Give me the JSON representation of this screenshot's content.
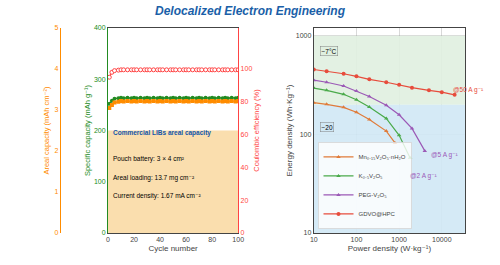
{
  "chart_data": [
    {
      "type": "line",
      "title": "Delocalized Electron Engineering",
      "x_label": "Cycle number",
      "y_label": "Specific capacity (mAh g⁻¹)",
      "y2_label": "Coulombic efficiency (%)",
      "y3_label": "Areal capacity (mAh cm⁻²)",
      "x": [
        1,
        3,
        5,
        8,
        10,
        12,
        15,
        18,
        20,
        22,
        25,
        28,
        30,
        32,
        35,
        38,
        40,
        42,
        45,
        48,
        50,
        52,
        55,
        58,
        60,
        62,
        65,
        68,
        70,
        72,
        75,
        78,
        80,
        82,
        85,
        88,
        90,
        92,
        95,
        98,
        100
      ],
      "series": [
        {
          "color": "#228B22",
          "marker": "circle",
          "line_style": "solid",
          "values": [
            252,
            258,
            262,
            263,
            264,
            263,
            264,
            263,
            264,
            263,
            264,
            263,
            264,
            263,
            264,
            263,
            264,
            263,
            264,
            263,
            264,
            263,
            264,
            263,
            264,
            263,
            264,
            263,
            264,
            263,
            264,
            263,
            264,
            263,
            264,
            263,
            264,
            263,
            264,
            263,
            264
          ]
        },
        {
          "color": "#FF8C00",
          "marker": "square",
          "line_style": "solid",
          "axis": "y3",
          "values": [
            3.05,
            3.12,
            3.18,
            3.2,
            3.22,
            3.21,
            3.22,
            3.21,
            3.22,
            3.21,
            3.22,
            3.21,
            3.22,
            3.21,
            3.22,
            3.21,
            3.22,
            3.21,
            3.22,
            3.21,
            3.22,
            3.21,
            3.22,
            3.21,
            3.22,
            3.21,
            3.22,
            3.21,
            3.22,
            3.21,
            3.22,
            3.21,
            3.22,
            3.21,
            3.22,
            3.21,
            3.22,
            3.21,
            3.22,
            3.21,
            3.22
          ]
        },
        {
          "color": "#FF4444",
          "marker": "open circle",
          "line_style": "dash",
          "axis": "y2",
          "values": [
            95,
            98,
            99,
            99.3,
            99.5,
            99.5,
            99.5,
            99.5,
            99.5,
            99.5,
            99.5,
            99.5,
            99.5,
            99.5,
            99.5,
            99.5,
            99.5,
            99.5,
            99.5,
            99.5,
            99.5,
            99.5,
            99.5,
            99.5,
            99.5,
            99.5,
            99.5,
            99.5,
            99.5,
            99.5,
            99.5,
            99.5,
            99.5,
            99.5,
            99.5,
            99.5,
            99.5,
            99.5,
            99.5,
            99.5,
            99.5
          ]
        }
      ],
      "xlim": [
        0,
        100
      ],
      "xticks": [
        0,
        20,
        40,
        60,
        80,
        100
      ],
      "ylim": [
        0,
        400
      ],
      "yticks": [
        0,
        100,
        200,
        300,
        400
      ],
      "y2lim": [
        0,
        125
      ],
      "y2ticks": [
        0,
        20,
        40,
        60,
        80,
        100
      ],
      "y3lim": [
        0,
        5
      ],
      "y3ticks": [
        0,
        1,
        2,
        3,
        4,
        5
      ],
      "grid": false,
      "bands": [
        {
          "y0": 0,
          "y1": 200,
          "label": "Commercial LIBs areal capacity",
          "color": "#f5c26b"
        }
      ],
      "annotations": [
        "Pouch battery: 3 × 4 cm²",
        "Areal loading: 13.7 mg cm⁻²",
        "Current density: 1.67 mA cm⁻²"
      ]
    },
    {
      "type": "line",
      "x_label": "Power density (W·kg⁻¹)",
      "y_label": "Energy density (Wh·Kg⁻¹)",
      "log": true,
      "xlim": [
        10,
        35000
      ],
      "xticks": [
        10,
        100,
        1000,
        10000
      ],
      "ylim": [
        10,
        1200
      ],
      "yticks": [
        10,
        100,
        1000
      ],
      "grid": true,
      "legend": "lower left",
      "series": [
        {
          "name": "Mn₀.₁₅V₂O₅·nH₂O",
          "color": "#e07b39",
          "marker": "triangle-up",
          "line_style": "solid",
          "x": [
            10,
            20,
            50,
            100,
            200,
            500,
            800
          ],
          "values": [
            210,
            202,
            188,
            168,
            142,
            108,
            82
          ]
        },
        {
          "name": "K₀.₅V₂O₅",
          "color": "#4aaa4a",
          "marker": "triangle-up",
          "line_style": "solid",
          "x": [
            10,
            20,
            50,
            100,
            200,
            500,
            1000,
            1800
          ],
          "values": [
            295,
            280,
            255,
            225,
            190,
            145,
            98,
            58
          ]
        },
        {
          "name": "PEG-V₂O₅",
          "color": "#9b59b6",
          "marker": "triangle-up",
          "line_style": "solid",
          "x": [
            10,
            20,
            50,
            100,
            200,
            500,
            1000,
            2000,
            4000
          ],
          "values": [
            355,
            338,
            310,
            275,
            242,
            198,
            158,
            115,
            68
          ]
        },
        {
          "name": "GDVO@HPC",
          "color": "#e74c3c",
          "marker": "circle",
          "line_style": "solid",
          "x": [
            10,
            20,
            50,
            100,
            200,
            500,
            1000,
            2000,
            5000,
            10000,
            20000
          ],
          "values": [
            455,
            438,
            412,
            388,
            362,
            338,
            318,
            298,
            280,
            268,
            252
          ]
        }
      ],
      "bands": [
        {
          "y0": 200,
          "y1": 1000,
          "label": "−7°C",
          "label_x": 14,
          "label_y": 700,
          "color": "#e0f0e0"
        },
        {
          "y0": 10,
          "y1": 200,
          "label": "−20",
          "label_x": 14,
          "label_y": 120,
          "color": "#d0e8f5"
        }
      ],
      "annotations": [
        {
          "text": "@50 A g⁻¹",
          "x": 16000,
          "y": 280,
          "color": "#e74c3c"
        },
        {
          "text": "@5 A g⁻¹",
          "x": 5000,
          "y": 62,
          "color": "#9b59b6"
        },
        {
          "text": "@2 A g⁻¹",
          "x": 1600,
          "y": 38,
          "color": "#9b59b6"
        }
      ]
    }
  ]
}
